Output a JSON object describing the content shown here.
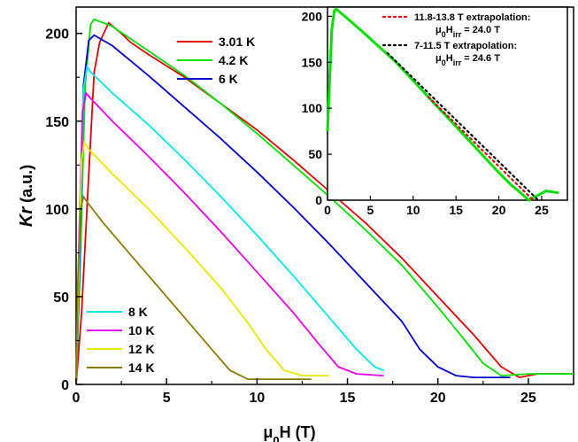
{
  "chart_data": [
    {
      "type": "line",
      "xlabel": "μ0H (T)",
      "ylabel": "Kr (a.u.)",
      "xlim": [
        0,
        27.5
      ],
      "ylim": [
        0,
        215
      ],
      "xticks": [
        "0",
        "5",
        "10",
        "15",
        "20",
        "25"
      ],
      "yticks": [
        "0",
        "50",
        "100",
        "150",
        "200"
      ],
      "legend_groups": [
        {
          "placement": "top",
          "entries": [
            "3.01 K",
            "4.2 K",
            "6 K"
          ]
        },
        {
          "placement": "bottom-left",
          "entries": [
            "8 K",
            "10 K",
            "12 K",
            "14 K"
          ]
        }
      ],
      "series": [
        {
          "name": "3.01 K",
          "color": "#e00000",
          "points": [
            [
              0,
              0
            ],
            [
              0.3,
              40
            ],
            [
              0.7,
              120
            ],
            [
              1.0,
              178
            ],
            [
              1.3,
              195
            ],
            [
              1.8,
              206
            ],
            [
              2.5,
              200
            ],
            [
              3,
              195
            ],
            [
              4,
              188
            ],
            [
              6,
              175
            ],
            [
              8,
              160
            ],
            [
              10,
              145
            ],
            [
              12,
              128
            ],
            [
              14,
              110
            ],
            [
              16,
              92
            ],
            [
              18,
              72
            ],
            [
              20,
              50
            ],
            [
              22,
              28
            ],
            [
              23.5,
              10
            ],
            [
              24.5,
              4
            ],
            [
              25.5,
              6
            ],
            [
              27.5,
              6
            ]
          ]
        },
        {
          "name": "4.2 K",
          "color": "#00e000",
          "points": [
            [
              0,
              0
            ],
            [
              0.2,
              60
            ],
            [
              0.5,
              170
            ],
            [
              0.8,
              205
            ],
            [
              1.0,
              208
            ],
            [
              2,
              204
            ],
            [
              4,
              190
            ],
            [
              6,
              176
            ],
            [
              8,
              160
            ],
            [
              10,
              143
            ],
            [
              12,
              125
            ],
            [
              14,
              107
            ],
            [
              16,
              88
            ],
            [
              18,
              68
            ],
            [
              20,
              44
            ],
            [
              21.5,
              25
            ],
            [
              22.5,
              12
            ],
            [
              23.5,
              5
            ],
            [
              25,
              6
            ],
            [
              27.5,
              6
            ]
          ]
        },
        {
          "name": "6 K",
          "color": "#0000cc",
          "points": [
            [
              0,
              0
            ],
            [
              0.2,
              70
            ],
            [
              0.4,
              170
            ],
            [
              0.7,
              196
            ],
            [
              1.0,
              199
            ],
            [
              2,
              193
            ],
            [
              4,
              176
            ],
            [
              6,
              158
            ],
            [
              8,
              140
            ],
            [
              10,
              121
            ],
            [
              12,
              101
            ],
            [
              14,
              80
            ],
            [
              16,
              58
            ],
            [
              18,
              36
            ],
            [
              19,
              20
            ],
            [
              20,
              10
            ],
            [
              21,
              5
            ],
            [
              22,
              4
            ],
            [
              24,
              4
            ]
          ]
        },
        {
          "name": "8 K",
          "color": "#00e8e8",
          "points": [
            [
              0,
              0
            ],
            [
              0.2,
              80
            ],
            [
              0.4,
              168
            ],
            [
              0.6,
              181
            ],
            [
              0.8,
              178
            ],
            [
              2,
              166
            ],
            [
              4,
              148
            ],
            [
              6,
              128
            ],
            [
              8,
              107
            ],
            [
              10,
              85
            ],
            [
              12,
              62
            ],
            [
              14,
              38
            ],
            [
              15.5,
              20
            ],
            [
              16.5,
              10
            ],
            [
              17,
              8
            ]
          ]
        },
        {
          "name": "10 K",
          "color": "#e800e8",
          "points": [
            [
              0,
              0
            ],
            [
              0.15,
              80
            ],
            [
              0.35,
              155
            ],
            [
              0.55,
              166
            ],
            [
              0.8,
              163
            ],
            [
              2,
              150
            ],
            [
              4,
              130
            ],
            [
              6,
              109
            ],
            [
              8,
              87
            ],
            [
              10,
              64
            ],
            [
              12,
              41
            ],
            [
              13.5,
              22
            ],
            [
              14.5,
              10
            ],
            [
              15.5,
              6
            ],
            [
              17,
              5
            ]
          ]
        },
        {
          "name": "12 K",
          "color": "#e8e800",
          "points": [
            [
              0,
              0
            ],
            [
              0.15,
              70
            ],
            [
              0.3,
              128
            ],
            [
              0.45,
              138
            ],
            [
              0.7,
              134
            ],
            [
              2,
              120
            ],
            [
              4,
              100
            ],
            [
              6,
              78
            ],
            [
              8,
              55
            ],
            [
              9.5,
              35
            ],
            [
              10.5,
              20
            ],
            [
              11.5,
              8
            ],
            [
              12.5,
              5
            ],
            [
              14,
              5
            ]
          ]
        },
        {
          "name": "14 K",
          "color": "#8a7d00",
          "points": [
            [
              0,
              0
            ],
            [
              0.1,
              60
            ],
            [
              0.25,
              100
            ],
            [
              0.4,
              107
            ],
            [
              0.6,
              104
            ],
            [
              1.5,
              92
            ],
            [
              3,
              74
            ],
            [
              4.5,
              56
            ],
            [
              6,
              38
            ],
            [
              7.5,
              20
            ],
            [
              8.5,
              8
            ],
            [
              9.5,
              3
            ],
            [
              11,
              3
            ],
            [
              13,
              3
            ]
          ]
        }
      ]
    },
    {
      "type": "line",
      "xlabel": "",
      "ylabel": "",
      "xlim": [
        0,
        28
      ],
      "ylim": [
        0,
        210
      ],
      "xticks": [
        "0",
        "5",
        "10",
        "15",
        "20",
        "25"
      ],
      "yticks": [
        "0",
        "50",
        "100",
        "150",
        "200"
      ],
      "legend_placement": "top-right",
      "series": [
        {
          "name": "4.2 K data",
          "color": "#00e000",
          "points": [
            [
              0,
              75
            ],
            [
              0.2,
              120
            ],
            [
              0.5,
              185
            ],
            [
              0.8,
              206
            ],
            [
              1.0,
              208
            ],
            [
              2,
              200
            ],
            [
              4,
              184
            ],
            [
              6,
              167
            ],
            [
              8,
              150
            ],
            [
              10,
              130
            ],
            [
              12,
              110
            ],
            [
              14,
              90
            ],
            [
              16,
              70
            ],
            [
              18,
              50
            ],
            [
              20,
              30
            ],
            [
              21.5,
              16
            ],
            [
              22.3,
              10
            ],
            [
              23.5,
              0
            ],
            [
              24.5,
              5
            ],
            [
              25.5,
              10
            ],
            [
              27,
              8
            ]
          ]
        },
        {
          "name": "11.8-13.8 T extrapolation:",
          "label2": "μ0Hirr = 24.0 T",
          "color": "#e00000",
          "dotted": true,
          "points": [
            [
              11.8,
              112
            ],
            [
              24.0,
              0
            ]
          ]
        },
        {
          "name": "7-11.5 T extrapolation:",
          "label2": "μ0Hirr = 24.6 T",
          "color": "#000000",
          "dotted": true,
          "points": [
            [
              7,
              160
            ],
            [
              24.6,
              0
            ]
          ]
        }
      ]
    }
  ]
}
